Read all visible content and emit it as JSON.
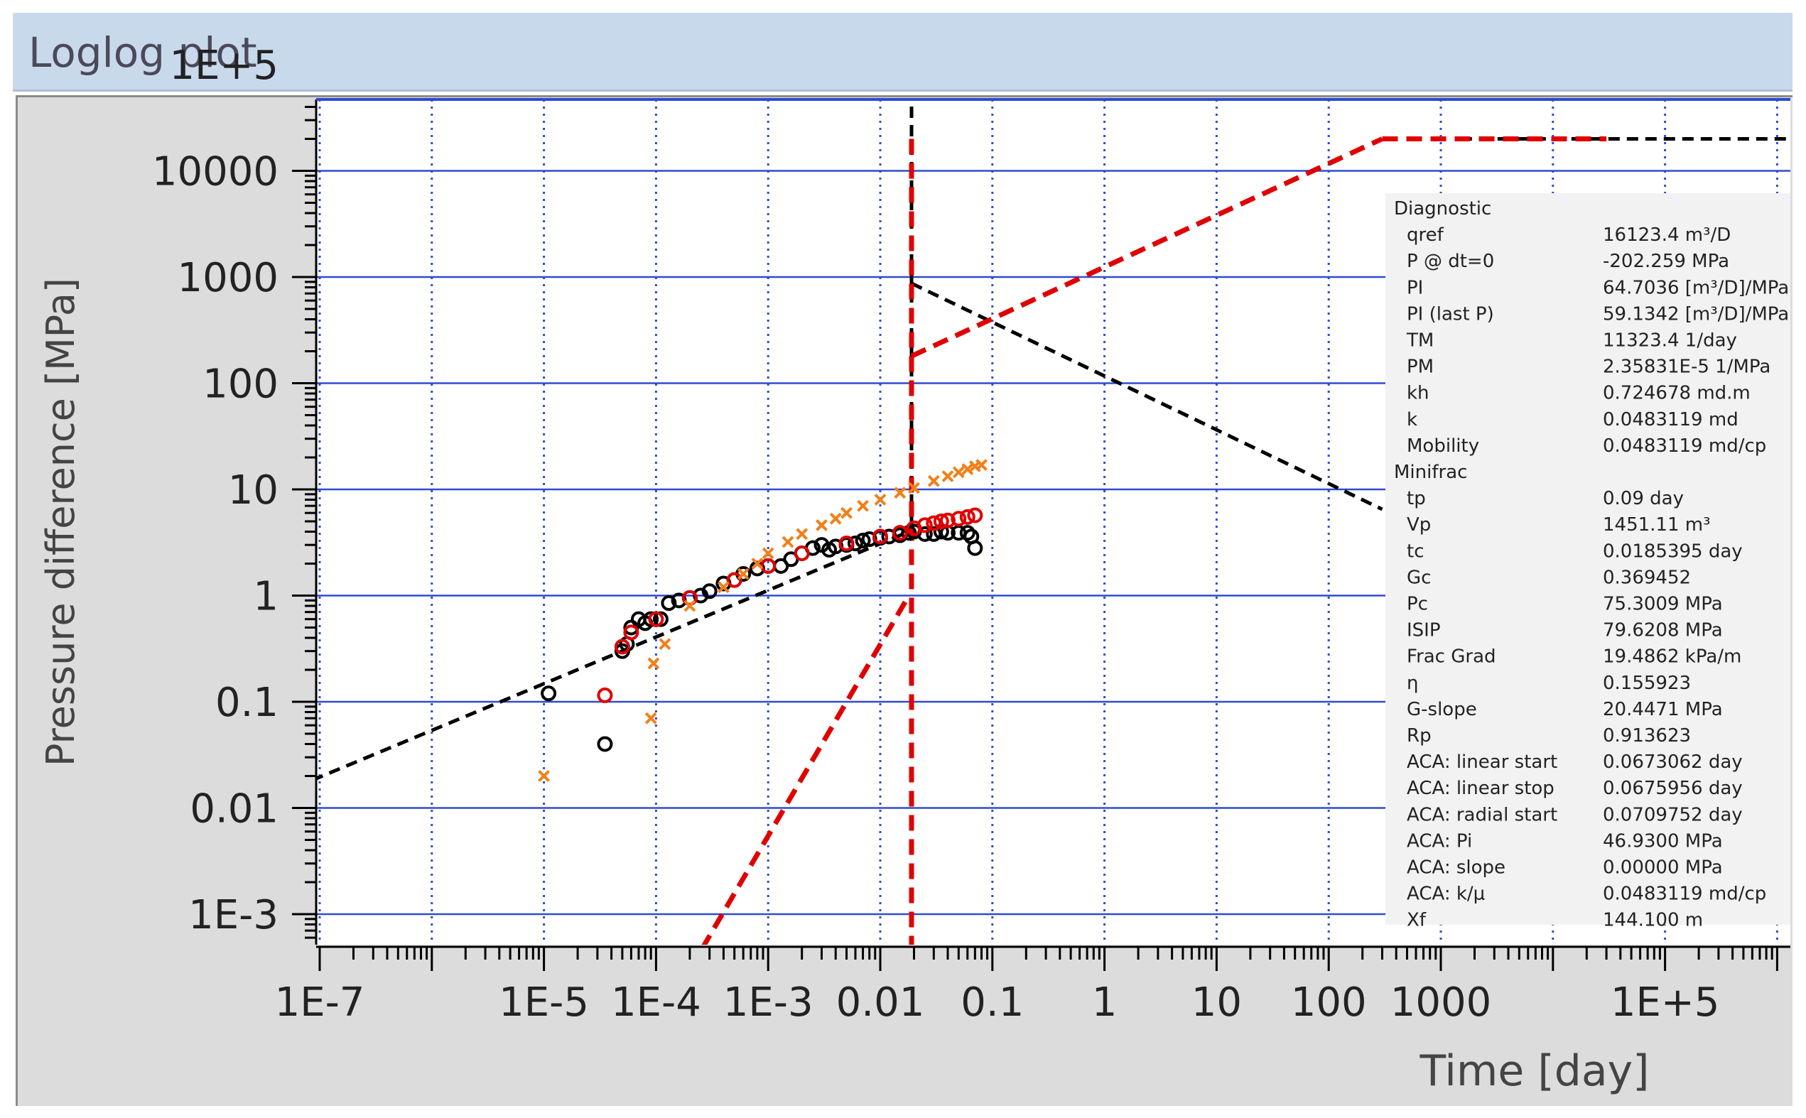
{
  "window": {
    "title": "Loglog plot"
  },
  "chart_data": {
    "type": "scatter",
    "title": "",
    "xlabel": "Time [day]",
    "ylabel": "Pressure difference [MPa]",
    "x_scale": "log",
    "y_scale": "log",
    "xlim": [
      3e-08,
      6000000.0
    ],
    "ylim": [
      0.0003,
      200000.0
    ],
    "x_ticks": [
      {
        "v": 1e-07,
        "label": "1E-7"
      },
      {
        "v": 1e-05,
        "label": "1E-5"
      },
      {
        "v": 0.0001,
        "label": "1E-4"
      },
      {
        "v": 0.001,
        "label": "1E-3"
      },
      {
        "v": 0.01,
        "label": "0.01"
      },
      {
        "v": 0.1,
        "label": "0.1"
      },
      {
        "v": 1,
        "label": "1"
      },
      {
        "v": 10,
        "label": "10"
      },
      {
        "v": 100,
        "label": "100"
      },
      {
        "v": 1000,
        "label": "1000"
      },
      {
        "v": 100000.0,
        "label": "1E+5"
      }
    ],
    "y_ticks": [
      {
        "v": 100000.0,
        "label": "1E+5"
      },
      {
        "v": 10000.0,
        "label": "10000"
      },
      {
        "v": 1000,
        "label": "1000"
      },
      {
        "v": 100,
        "label": "100"
      },
      {
        "v": 10,
        "label": "10"
      },
      {
        "v": 1,
        "label": "1"
      },
      {
        "v": 0.1,
        "label": "0.1"
      },
      {
        "v": 0.01,
        "label": "0.01"
      },
      {
        "v": 0.001,
        "label": "1E-3"
      }
    ],
    "grid": true,
    "series": [
      {
        "marker": "circle-open",
        "color": "#000000",
        "points": [
          [
            1.1e-05,
            0.12
          ],
          [
            3.5e-05,
            0.04
          ],
          [
            5e-05,
            0.3
          ],
          [
            5.5e-05,
            0.35
          ],
          [
            6e-05,
            0.5
          ],
          [
            7e-05,
            0.6
          ],
          [
            8e-05,
            0.55
          ],
          [
            9e-05,
            0.6
          ],
          [
            0.00011,
            0.6
          ],
          [
            0.00013,
            0.85
          ],
          [
            0.00016,
            0.9
          ],
          [
            0.0002,
            0.95
          ],
          [
            0.00025,
            1.0
          ],
          [
            0.0003,
            1.1
          ],
          [
            0.0004,
            1.3
          ],
          [
            0.0005,
            1.4
          ],
          [
            0.0006,
            1.6
          ],
          [
            0.0008,
            1.8
          ],
          [
            0.001,
            1.9
          ],
          [
            0.0013,
            1.9
          ],
          [
            0.0016,
            2.2
          ],
          [
            0.002,
            2.5
          ],
          [
            0.0025,
            2.8
          ],
          [
            0.003,
            3.0
          ],
          [
            0.0035,
            2.7
          ],
          [
            0.004,
            2.9
          ],
          [
            0.005,
            3.0
          ],
          [
            0.006,
            3.1
          ],
          [
            0.007,
            3.3
          ],
          [
            0.008,
            3.4
          ],
          [
            0.01,
            3.5
          ],
          [
            0.012,
            3.6
          ],
          [
            0.015,
            3.7
          ],
          [
            0.018,
            3.9
          ],
          [
            0.02,
            4.0
          ],
          [
            0.025,
            3.8
          ],
          [
            0.03,
            3.8
          ],
          [
            0.035,
            4.0
          ],
          [
            0.04,
            3.9
          ],
          [
            0.05,
            3.9
          ],
          [
            0.06,
            3.9
          ],
          [
            0.065,
            3.6
          ],
          [
            0.07,
            2.8
          ]
        ]
      },
      {
        "marker": "circle-open",
        "color": "#e00000",
        "points": [
          [
            3.5e-05,
            0.115
          ],
          [
            5e-05,
            0.33
          ],
          [
            6e-05,
            0.45
          ],
          [
            0.0001,
            0.6
          ],
          [
            0.0002,
            0.95
          ],
          [
            0.0005,
            1.4
          ],
          [
            0.001,
            1.9
          ],
          [
            0.002,
            2.5
          ],
          [
            0.005,
            3.1
          ],
          [
            0.01,
            3.6
          ],
          [
            0.015,
            3.9
          ],
          [
            0.02,
            4.3
          ],
          [
            0.025,
            4.6
          ],
          [
            0.03,
            4.8
          ],
          [
            0.035,
            5.0
          ],
          [
            0.04,
            5.1
          ],
          [
            0.05,
            5.3
          ],
          [
            0.06,
            5.5
          ],
          [
            0.07,
            5.7
          ]
        ]
      },
      {
        "marker": "x",
        "color": "#f0801a",
        "points": [
          [
            1e-05,
            0.02
          ],
          [
            9e-05,
            0.07
          ],
          [
            9.5e-05,
            0.23
          ],
          [
            0.00012,
            0.35
          ],
          [
            0.0002,
            0.8
          ],
          [
            0.0004,
            1.2
          ],
          [
            0.0006,
            1.6
          ],
          [
            0.0008,
            2.0
          ],
          [
            0.001,
            2.5
          ],
          [
            0.0015,
            3.2
          ],
          [
            0.002,
            3.8
          ],
          [
            0.003,
            4.6
          ],
          [
            0.004,
            5.3
          ],
          [
            0.005,
            6.0
          ],
          [
            0.007,
            7.0
          ],
          [
            0.01,
            8.0
          ],
          [
            0.015,
            9.3
          ],
          [
            0.02,
            10.3
          ],
          [
            0.03,
            12.0
          ],
          [
            0.04,
            13.3
          ],
          [
            0.05,
            14.5
          ],
          [
            0.06,
            15.5
          ],
          [
            0.07,
            16.5
          ],
          [
            0.08,
            17.0
          ]
        ]
      }
    ],
    "lines": [
      {
        "style": "dashed",
        "color": "#000000",
        "points": [
          [
            3e-08,
            0.0115
          ],
          [
            0.018,
            4.0
          ]
        ]
      },
      {
        "style": "dashed",
        "color": "#000000",
        "points": [
          [
            0.019,
            200000
          ],
          [
            0.019,
            4.0
          ]
        ]
      },
      {
        "style": "dashed",
        "color": "#000000",
        "points": [
          [
            0.019,
            870
          ],
          [
            300,
            6.5
          ]
        ]
      },
      {
        "style": "dashed",
        "color": "#000000",
        "points": [
          [
            1500,
            20000
          ],
          [
            6000000.0,
            20000
          ]
        ]
      },
      {
        "style": "dashed",
        "color": "#e00000",
        "points": [
          [
            0.0002,
            0.0003
          ],
          [
            0.018,
            1.0
          ]
        ]
      },
      {
        "style": "dashed",
        "color": "#e00000",
        "points": [
          [
            0.019,
            20000
          ],
          [
            0.019,
            0.0003
          ]
        ]
      },
      {
        "style": "dashed",
        "color": "#e00000",
        "points": [
          [
            0.019,
            180
          ],
          [
            300,
            20000
          ]
        ]
      },
      {
        "style": "dashed",
        "color": "#e00000",
        "points": [
          [
            300,
            20000
          ],
          [
            30000.0,
            20000
          ]
        ]
      }
    ]
  },
  "diagnostic_panel": {
    "sections": [
      {
        "header": "Diagnostic",
        "rows": [
          {
            "label": "qref",
            "value": "16123.4 m³/D"
          },
          {
            "label": "P @ dt=0",
            "value": "-202.259 MPa"
          },
          {
            "label": "PI",
            "value": "64.7036 [m³/D]/MPa"
          },
          {
            "label": "PI (last P)",
            "value": "59.1342 [m³/D]/MPa"
          },
          {
            "label": "TM",
            "value": "11323.4 1/day"
          },
          {
            "label": "PM",
            "value": "2.35831E-5 1/MPa"
          },
          {
            "label": "kh",
            "value": "0.724678 md.m"
          },
          {
            "label": "k",
            "value": "0.0483119 md"
          },
          {
            "label": "Mobility",
            "value": "0.0483119 md/cp"
          }
        ]
      },
      {
        "header": "Minifrac",
        "rows": [
          {
            "label": "tp",
            "value": "0.09 day"
          },
          {
            "label": "Vp",
            "value": "1451.11 m³"
          },
          {
            "label": "tc",
            "value": "0.0185395 day"
          },
          {
            "label": "Gc",
            "value": "0.369452"
          },
          {
            "label": "Pc",
            "value": "75.3009 MPa"
          },
          {
            "label": "ISIP",
            "value": "79.6208 MPa"
          },
          {
            "label": "Frac Grad",
            "value": "19.4862 kPa/m"
          },
          {
            "label": "η",
            "value": "0.155923"
          },
          {
            "label": "G-slope",
            "value": "20.4471 MPa"
          },
          {
            "label": "Rp",
            "value": "0.913623"
          },
          {
            "label": "ACA: linear start",
            "value": "0.0673062 day"
          },
          {
            "label": "ACA: linear stop",
            "value": "0.0675956 day"
          },
          {
            "label": "ACA: radial start",
            "value": "0.0709752 day"
          },
          {
            "label": "ACA: Pi",
            "value": "46.9300 MPa"
          },
          {
            "label": "ACA: slope",
            "value": "0.00000 MPa"
          },
          {
            "label": "ACA: k/μ",
            "value": "0.0483119 md/cp"
          },
          {
            "label": "Xf",
            "value": "144.100 m"
          }
        ]
      }
    ]
  }
}
